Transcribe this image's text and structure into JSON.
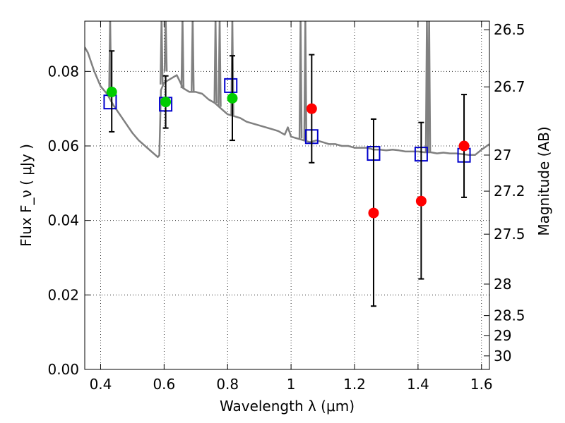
{
  "chart_data": {
    "type": "scatter",
    "xlabel": "Wavelength  λ (μm)",
    "ylabel": "Flux  F_ν  ( μJy )",
    "ylabel_right": "Magnitude (AB)",
    "xlim": [
      0.35,
      1.625
    ],
    "ylim": [
      0.0,
      0.0935
    ],
    "grid": true,
    "x_ticks": [
      {
        "v": 0.4,
        "label": "0.4"
      },
      {
        "v": 0.6,
        "label": "0.6"
      },
      {
        "v": 0.8,
        "label": "0.8"
      },
      {
        "v": 1.0,
        "label": "1"
      },
      {
        "v": 1.2,
        "label": "1.2"
      },
      {
        "v": 1.4,
        "label": "1.4"
      },
      {
        "v": 1.6,
        "label": "1.6"
      }
    ],
    "y_ticks": [
      {
        "v": 0.0,
        "label": "0.00"
      },
      {
        "v": 0.02,
        "label": "0.02"
      },
      {
        "v": 0.04,
        "label": "0.04"
      },
      {
        "v": 0.06,
        "label": "0.06"
      },
      {
        "v": 0.08,
        "label": "0.08"
      }
    ],
    "right_ticks": [
      {
        "mag": 26.5,
        "label": "26.5"
      },
      {
        "mag": 26.7,
        "label": "26.7"
      },
      {
        "mag": 27.0,
        "label": "27"
      },
      {
        "mag": 27.2,
        "label": "27.2"
      },
      {
        "mag": 27.5,
        "label": "27.5"
      },
      {
        "mag": 28.0,
        "label": "28"
      },
      {
        "mag": 28.5,
        "label": "28.5"
      },
      {
        "mag": 29.0,
        "label": "29"
      },
      {
        "mag": 30.0,
        "label": "30"
      }
    ],
    "model_spectrum": {
      "color": "#808080",
      "x": [
        0.35,
        0.36,
        0.38,
        0.4,
        0.42,
        0.44,
        0.46,
        0.48,
        0.5,
        0.52,
        0.54,
        0.56,
        0.58,
        0.585,
        0.59,
        0.6,
        0.62,
        0.64,
        0.66,
        0.68,
        0.7,
        0.72,
        0.74,
        0.76,
        0.78,
        0.8,
        0.82,
        0.84,
        0.86,
        0.88,
        0.9,
        0.92,
        0.94,
        0.96,
        0.98,
        0.99,
        1.0,
        1.02,
        1.04,
        1.06,
        1.08,
        1.1,
        1.12,
        1.14,
        1.16,
        1.18,
        1.2,
        1.22,
        1.24,
        1.26,
        1.28,
        1.3,
        1.32,
        1.34,
        1.36,
        1.38,
        1.4,
        1.42,
        1.44,
        1.46,
        1.48,
        1.5,
        1.52,
        1.54,
        1.56,
        1.58,
        1.6,
        1.625
      ],
      "y": [
        0.0865,
        0.085,
        0.08,
        0.076,
        0.074,
        0.071,
        0.0685,
        0.066,
        0.0635,
        0.0615,
        0.06,
        0.0585,
        0.057,
        0.0575,
        0.075,
        0.077,
        0.078,
        0.079,
        0.0755,
        0.0745,
        0.0745,
        0.074,
        0.0725,
        0.0715,
        0.07,
        0.0685,
        0.068,
        0.0675,
        0.0665,
        0.066,
        0.0655,
        0.065,
        0.0645,
        0.064,
        0.063,
        0.065,
        0.0625,
        0.062,
        0.0615,
        0.061,
        0.0615,
        0.061,
        0.0605,
        0.0605,
        0.06,
        0.06,
        0.0595,
        0.0595,
        0.0595,
        0.059,
        0.059,
        0.0588,
        0.059,
        0.0588,
        0.0585,
        0.0585,
        0.0585,
        0.0583,
        0.0583,
        0.058,
        0.0582,
        0.058,
        0.058,
        0.0578,
        0.0576,
        0.0576,
        0.059,
        0.0605
      ]
    },
    "emission_lines": [
      {
        "x": 0.43,
        "y_base": 0.073
      },
      {
        "x": 0.592,
        "y_base": 0.0765
      },
      {
        "x": 0.605,
        "y_base": 0.08
      },
      {
        "x": 0.658,
        "y_base": 0.0755
      },
      {
        "x": 0.69,
        "y_base": 0.0745
      },
      {
        "x": 0.762,
        "y_base": 0.0715
      },
      {
        "x": 0.775,
        "y_base": 0.0705
      },
      {
        "x": 0.815,
        "y_base": 0.068
      },
      {
        "x": 1.03,
        "y_base": 0.062
      },
      {
        "x": 1.045,
        "y_base": 0.0615
      },
      {
        "x": 1.428,
        "y_base": 0.0583
      },
      {
        "x": 1.435,
        "y_base": 0.0583
      }
    ],
    "series": [
      {
        "name": "",
        "marker": "square",
        "color": "#0000cc",
        "points": [
          {
            "x": 0.43,
            "y": 0.0718
          },
          {
            "x": 0.605,
            "y": 0.0712
          },
          {
            "x": 0.81,
            "y": 0.0762
          },
          {
            "x": 1.065,
            "y": 0.0625
          },
          {
            "x": 1.26,
            "y": 0.058
          },
          {
            "x": 1.41,
            "y": 0.0578
          },
          {
            "x": 1.545,
            "y": 0.0575
          }
        ]
      },
      {
        "name": "",
        "marker": "circle",
        "color": "#00cc00",
        "points": [
          {
            "x": 0.435,
            "y": 0.0745,
            "err_low": 0.0638,
            "err_high": 0.0855
          },
          {
            "x": 0.605,
            "y": 0.0718,
            "err_low": 0.0648,
            "err_high": 0.0788
          },
          {
            "x": 0.815,
            "y": 0.0728,
            "err_low": 0.0615,
            "err_high": 0.0842
          }
        ]
      },
      {
        "name": "",
        "marker": "circle",
        "color": "#ff0000",
        "points": [
          {
            "x": 1.065,
            "y": 0.07,
            "err_low": 0.0555,
            "err_high": 0.0845
          },
          {
            "x": 1.26,
            "y": 0.042,
            "err_low": 0.017,
            "err_high": 0.0672
          },
          {
            "x": 1.41,
            "y": 0.0452,
            "err_low": 0.0243,
            "err_high": 0.0663
          },
          {
            "x": 1.545,
            "y": 0.06,
            "err_low": 0.0462,
            "err_high": 0.0738
          }
        ]
      }
    ]
  }
}
